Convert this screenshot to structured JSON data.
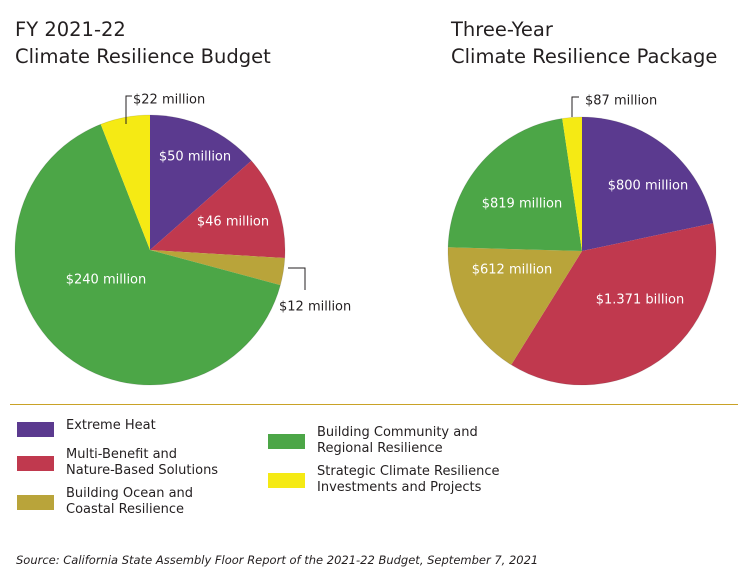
{
  "chart_data": [
    {
      "type": "pie",
      "title": [
        "FY 2021-22",
        "Climate Resilience Budget"
      ],
      "categories": [
        "Extreme Heat",
        "Multi-Benefit and Nature-Based Solutions",
        "Building Ocean and Coastal Resilience",
        "Building Community and Regional Resilience",
        "Strategic Climate Resilience Investments and Projects"
      ],
      "values": [
        50,
        46,
        12,
        240,
        22
      ],
      "unit": "million",
      "data_labels": [
        "$50 million",
        "$46 million",
        "$12 million",
        "$240 million",
        "$22 million"
      ],
      "colors": [
        "#5b3a8f",
        "#c0394e",
        "#b9a43a",
        "#4ca647",
        "#f5ea14"
      ]
    },
    {
      "type": "pie",
      "title": [
        "Three-Year",
        "Climate Resilience Package"
      ],
      "categories": [
        "Extreme Heat",
        "Multi-Benefit and Nature-Based Solutions",
        "Building Ocean and Coastal Resilience",
        "Building Community and Regional Resilience",
        "Strategic Climate Resilience Investments and Projects"
      ],
      "values": [
        800,
        1371,
        612,
        819,
        87
      ],
      "unit": "million",
      "data_labels": [
        "$800 million",
        "$1.371 billion",
        "$612 million",
        "$819 million",
        "$87 million"
      ],
      "colors": [
        "#5b3a8f",
        "#c0394e",
        "#b9a43a",
        "#4ca647",
        "#f5ea14"
      ]
    }
  ],
  "legend": [
    {
      "label": [
        "Extreme Heat"
      ],
      "color": "#5b3a8f"
    },
    {
      "label": [
        "Multi-Benefit and",
        "Nature-Based Solutions"
      ],
      "color": "#c0394e"
    },
    {
      "label": [
        "Building Ocean and",
        "Coastal Resilience"
      ],
      "color": "#b9a43a"
    },
    {
      "label": [
        "Building Community and",
        "Regional Resilience"
      ],
      "color": "#4ca647"
    },
    {
      "label": [
        "Strategic Climate Resilience",
        "Investments and Projects"
      ],
      "color": "#f5ea14"
    }
  ],
  "source": "Source: California State Assembly Floor Report of the 2021-22 Budget, September 7, 2021"
}
